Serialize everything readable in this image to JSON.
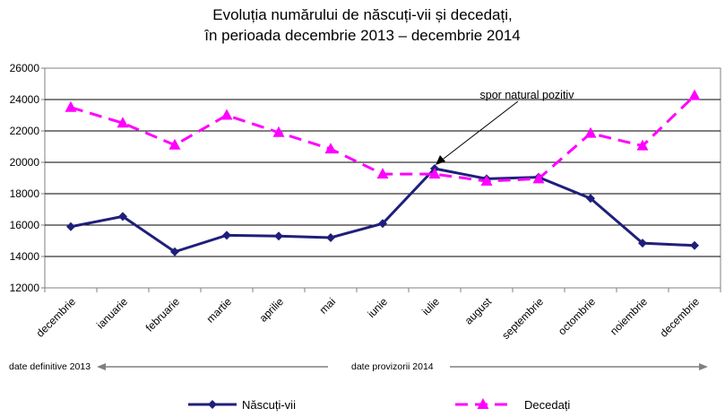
{
  "chart_data": {
    "type": "line",
    "title": "Evoluția numărului de născuți-vii și decedați,",
    "subtitle": "în perioada decembrie 2013 – decembrie 2014",
    "categories": [
      "decembrie",
      "ianuarie",
      "februarie",
      "martie",
      "aprilie",
      "mai",
      "iunie",
      "iulie",
      "august",
      "septembrie",
      "octombrie",
      "noiembrie",
      "decembrie"
    ],
    "series": [
      {
        "name": "Născuți-vii",
        "color": "#1f1f7a",
        "marker": "diamond",
        "values": [
          15900,
          16550,
          14300,
          15350,
          15300,
          15200,
          16100,
          19600,
          18950,
          19050,
          17700,
          14850,
          14700
        ]
      },
      {
        "name": "Decedați",
        "color": "#ff00ff",
        "marker": "triangle",
        "dash": true,
        "values": [
          23500,
          22500,
          21100,
          23000,
          21900,
          20850,
          19250,
          19250,
          18800,
          18950,
          21850,
          21050,
          24250
        ]
      }
    ],
    "ylim": [
      12000,
      26000
    ],
    "yticks": [
      12000,
      14000,
      16000,
      18000,
      20000,
      22000,
      24000,
      26000
    ],
    "grid": true,
    "legend": "bottom",
    "annotation": {
      "text": "spor natural pozitiv",
      "points_to_category": "iulie"
    },
    "period_labels": {
      "left": "date definitive 2013",
      "right": "date provizorii 2014"
    }
  }
}
